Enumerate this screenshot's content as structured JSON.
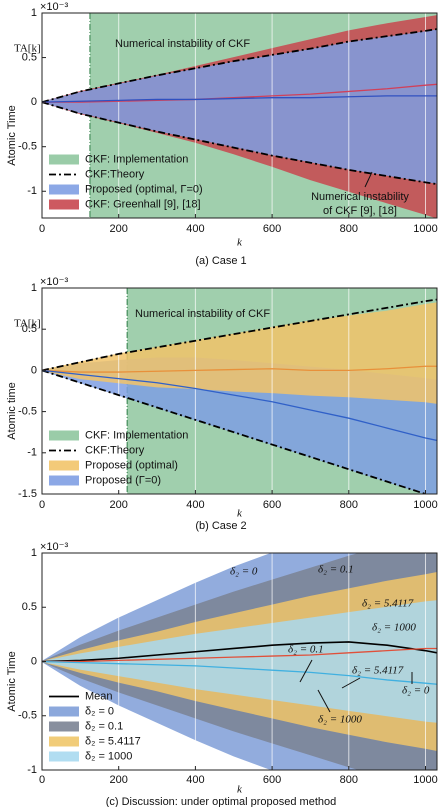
{
  "chart_data": [
    {
      "type": "band",
      "caption": "(a) Case 1",
      "xlabel": "k",
      "ylabel": "Atomic Time",
      "ylabel2": "TA[k]",
      "exponent": "×10⁻³",
      "x": [
        0,
        100,
        200,
        300,
        400,
        500,
        600,
        700,
        800,
        900,
        1000,
        1030
      ],
      "xlim": [
        0,
        1030
      ],
      "ylim": [
        -1.3,
        1
      ],
      "xticks": [
        0,
        200,
        400,
        600,
        800,
        1000
      ],
      "yticks": [
        -1,
        -0.5,
        0,
        0.5,
        1
      ],
      "grid": true,
      "legend": "lower left",
      "series": [
        {
          "name": "CKF: Implementation",
          "style": "region",
          "color": "#8fc79f",
          "x_start": 125
        },
        {
          "name": "CKF:Theory",
          "style": "dashdot",
          "color": "#000000",
          "upper": [
            0,
            0.12,
            0.21,
            0.3,
            0.38,
            0.46,
            0.53,
            0.6,
            0.68,
            0.74,
            0.8,
            0.82
          ],
          "lower": [
            0,
            -0.13,
            -0.23,
            -0.33,
            -0.42,
            -0.51,
            -0.6,
            -0.68,
            -0.76,
            -0.83,
            -0.9,
            -0.92
          ]
        },
        {
          "name": "Proposed (optimal, Γ=0)",
          "style": "band",
          "color": "#7f9fe3",
          "upper": [
            0,
            0.11,
            0.2,
            0.29,
            0.37,
            0.45,
            0.52,
            0.59,
            0.67,
            0.73,
            0.79,
            0.81
          ],
          "lower": [
            0,
            -0.12,
            -0.22,
            -0.32,
            -0.41,
            -0.5,
            -0.59,
            -0.67,
            -0.75,
            -0.82,
            -0.89,
            -0.91
          ]
        },
        {
          "name": "CKF: Greenhall [9], [18]",
          "style": "band",
          "color": "#c8474f",
          "upper": [
            0,
            0.12,
            0.21,
            0.3,
            0.4,
            0.5,
            0.6,
            0.7,
            0.8,
            0.88,
            0.95,
            0.97
          ],
          "lower": [
            0,
            -0.13,
            -0.23,
            -0.34,
            -0.45,
            -0.58,
            -0.72,
            -0.87,
            -1.0,
            -1.13,
            -1.26,
            -1.3
          ]
        },
        {
          "style": "line",
          "color": "#d0405a",
          "values": [
            0,
            0,
            0.01,
            0.02,
            0.03,
            0.05,
            0.07,
            0.09,
            0.12,
            0.15,
            0.19,
            0.2
          ]
        },
        {
          "style": "line",
          "color": "#3050c0",
          "values": [
            0,
            0.01,
            0.02,
            0.03,
            0.03,
            0.04,
            0.05,
            0.05,
            0.06,
            0.07,
            0.07,
            0.07
          ]
        }
      ],
      "annotations": [
        "Numerical instability of CKF",
        "Numerical instability",
        "of CKF [9], [18]"
      ]
    },
    {
      "type": "band",
      "caption": "(b) Case 2",
      "xlabel": "k",
      "ylabel": "Atomic time",
      "ylabel2": "TA[k]",
      "exponent": "×10⁻³",
      "x": [
        0,
        100,
        200,
        300,
        400,
        500,
        600,
        700,
        800,
        900,
        1000,
        1030
      ],
      "xlim": [
        0,
        1030
      ],
      "ylim": [
        -1.5,
        1
      ],
      "xticks": [
        0,
        200,
        400,
        600,
        800,
        1000
      ],
      "yticks": [
        -1.5,
        -1,
        -0.5,
        0,
        0.5,
        1
      ],
      "grid": true,
      "legend": "lower left",
      "series": [
        {
          "name": "CKF: Implementation",
          "style": "region",
          "color": "#8fc79f",
          "x_start": 222
        },
        {
          "name": "CKF:Theory",
          "style": "dashdot",
          "color": "#000000",
          "upper": [
            0,
            0.1,
            0.2,
            0.28,
            0.36,
            0.44,
            0.52,
            0.6,
            0.68,
            0.76,
            0.84,
            0.86
          ],
          "lower": [
            0,
            -0.15,
            -0.3,
            -0.45,
            -0.6,
            -0.75,
            -0.9,
            -1.05,
            -1.2,
            -1.35,
            -1.5,
            -1.55
          ]
        },
        {
          "name": "Proposed (optimal)",
          "style": "band",
          "color": "#f2c46a",
          "upper": [
            0,
            0.1,
            0.2,
            0.28,
            0.36,
            0.44,
            0.52,
            0.6,
            0.66,
            0.72,
            0.8,
            0.82
          ],
          "lower": [
            0,
            -0.1,
            -0.15,
            -0.2,
            -0.22,
            -0.25,
            -0.27,
            -0.3,
            -0.32,
            -0.35,
            -0.38,
            -0.4
          ]
        },
        {
          "name": "Proposed (Γ=0)",
          "style": "band",
          "color": "#7f9fe3",
          "upper": [
            0,
            0.08,
            0.12,
            0.15,
            0.15,
            0.12,
            0.08,
            0.04,
            0,
            -0.05,
            -0.1,
            -0.12
          ],
          "lower": [
            0,
            -0.15,
            -0.3,
            -0.45,
            -0.6,
            -0.75,
            -0.9,
            -1.05,
            -1.2,
            -1.35,
            -1.5,
            -1.55
          ]
        },
        {
          "style": "line",
          "color": "#e8903a",
          "values": [
            0,
            -0.02,
            -0.02,
            -0.01,
            0,
            0.01,
            0.02,
            0,
            0,
            0.02,
            0.05,
            0.05
          ]
        },
        {
          "style": "line",
          "color": "#3060c8",
          "values": [
            0,
            -0.05,
            -0.1,
            -0.15,
            -0.22,
            -0.3,
            -0.38,
            -0.48,
            -0.58,
            -0.7,
            -0.82,
            -0.85
          ]
        }
      ],
      "annotations": [
        "Numerical instability of CKF"
      ]
    },
    {
      "type": "band",
      "caption": "(c) Discussion: under optimal proposed method",
      "xlabel": "k",
      "ylabel": "Atomic Time",
      "exponent": "×10⁻³",
      "x": [
        0,
        100,
        200,
        300,
        400,
        500,
        600,
        700,
        800,
        900,
        1000,
        1030
      ],
      "xlim": [
        0,
        1030
      ],
      "ylim": [
        -1,
        1
      ],
      "xticks": [
        0,
        200,
        400,
        600,
        800,
        1000
      ],
      "yticks": [
        -1,
        -0.5,
        0,
        0.5,
        1
      ],
      "grid": true,
      "legend": "lower left",
      "series": [
        {
          "name": "Mean",
          "style": "line",
          "color": "#000000",
          "values": [
            0,
            0.01,
            0.03,
            0.06,
            0.09,
            0.12,
            0.15,
            0.17,
            0.18,
            0.15,
            0.1,
            0.08
          ]
        },
        {
          "name": "δ₂ = 0",
          "style": "band",
          "color": "#7f9ed8",
          "upper": [
            0,
            0.22,
            0.4,
            0.56,
            0.72,
            0.87,
            1.0,
            1.1,
            1.2,
            1.3,
            1.4,
            1.42
          ],
          "lower": [
            0,
            -0.22,
            -0.4,
            -0.56,
            -0.72,
            -0.87,
            -1.0,
            -1.1,
            -1.2,
            -1.3,
            -1.4,
            -1.42
          ]
        },
        {
          "name": "δ₂ = 0.1",
          "style": "band",
          "color": "#7b8394",
          "upper": [
            0,
            0.15,
            0.28,
            0.4,
            0.52,
            0.64,
            0.75,
            0.86,
            0.97,
            1.07,
            1.16,
            1.18
          ],
          "lower": [
            0,
            -0.15,
            -0.28,
            -0.4,
            -0.52,
            -0.64,
            -0.75,
            -0.86,
            -0.97,
            -1.07,
            -1.16,
            -1.18
          ]
        },
        {
          "name": "δ₂ = 5.4117",
          "style": "band",
          "color": "#f0c66a",
          "upper": [
            0,
            0.1,
            0.19,
            0.27,
            0.36,
            0.44,
            0.52,
            0.6,
            0.67,
            0.74,
            0.8,
            0.82
          ],
          "lower": [
            0,
            -0.1,
            -0.19,
            -0.27,
            -0.36,
            -0.44,
            -0.52,
            -0.6,
            -0.67,
            -0.74,
            -0.8,
            -0.82
          ]
        },
        {
          "name": "δ₂ = 1000",
          "style": "band",
          "color": "#a9d9ef",
          "upper": [
            0,
            0.07,
            0.13,
            0.19,
            0.25,
            0.3,
            0.35,
            0.4,
            0.45,
            0.5,
            0.55,
            0.56
          ],
          "lower": [
            0,
            -0.07,
            -0.13,
            -0.19,
            -0.25,
            -0.3,
            -0.35,
            -0.4,
            -0.45,
            -0.5,
            -0.55,
            -0.56
          ]
        },
        {
          "style": "line",
          "color": "#e0503a",
          "values": [
            0,
            0,
            0.01,
            0.02,
            0.03,
            0.04,
            0.05,
            0.06,
            0.08,
            0.1,
            0.12,
            0.12
          ]
        },
        {
          "style": "line",
          "color": "#40b0e0",
          "values": [
            0,
            -0.01,
            -0.02,
            -0.03,
            -0.04,
            -0.06,
            -0.08,
            -0.1,
            -0.13,
            -0.17,
            -0.2,
            -0.21
          ]
        }
      ],
      "annotations": [
        "δ₂ = 0",
        "δ₂ = 0.1",
        "δ₂ = 5.4117",
        "δ₂ = 1000",
        "δ₂ = 0.1",
        "δ₂ = 5.4117",
        "δ₂ = 0",
        "δ₂ = 1000"
      ]
    }
  ]
}
